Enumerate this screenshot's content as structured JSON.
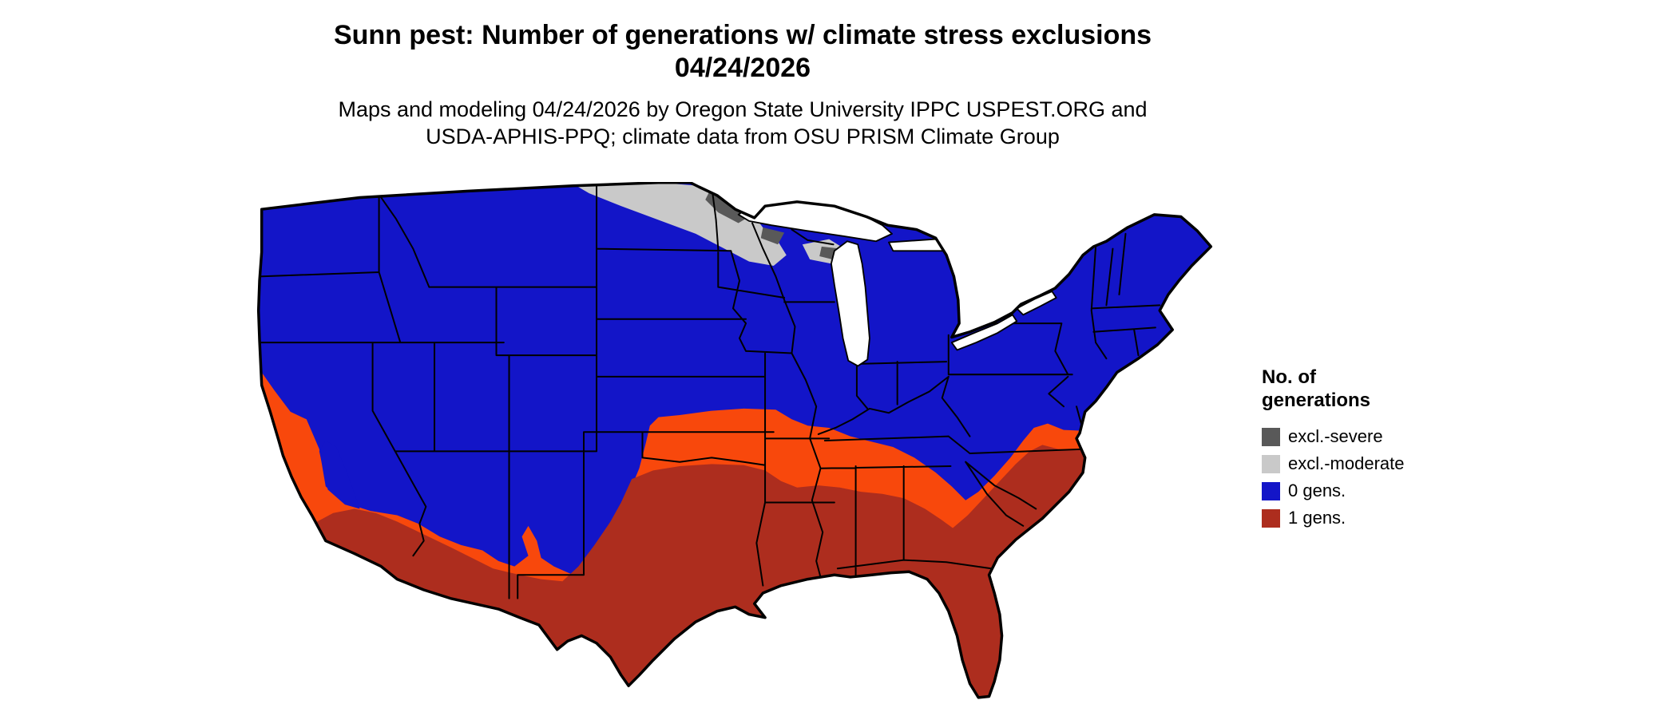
{
  "title": {
    "line1": "Sunn pest: Number of generations w/ climate stress exclusions",
    "line2": "04/24/2026"
  },
  "subtitle": {
    "line1": "Maps and modeling 04/24/2026 by Oregon State University IPPC USPEST.ORG and",
    "line2": "USDA-APHIS-PPQ; climate data from OSU PRISM Climate Group"
  },
  "legend": {
    "title_line1": "No. of",
    "title_line2": "generations",
    "items": [
      {
        "label": "excl.-severe",
        "color": "#595959"
      },
      {
        "label": "excl.-moderate",
        "color": "#c9c9c9"
      },
      {
        "label": "0 gens.",
        "color": "#1315c8"
      },
      {
        "label": "1 gens.",
        "color": "#ad2d1e"
      }
    ]
  },
  "map": {
    "name": "Continental United States",
    "colors": {
      "no_generations": "#1315c8",
      "transition": "#f8480c",
      "one_generation": "#ad2d1e",
      "exclusion_moderate": "#c9c9c9",
      "exclusion_severe": "#595959",
      "water": "#ffffff",
      "boundary": "#000000"
    },
    "zones": [
      {
        "value": "excl.-severe",
        "region": "pockets in northern Minnesota and northern North Dakota"
      },
      {
        "value": "excl.-moderate",
        "region": "northern North Dakota, northern Minnesota, northern Wisconsin"
      },
      {
        "value": "0 gens.",
        "region": "northern and western US, Rockies, Great Basin, Midwest, Northeast"
      },
      {
        "value": "1 gens.",
        "region": "southern California deserts, southern Arizona, southern New Mexico, Texas, Gulf states, Southeast, Florida"
      }
    ]
  }
}
